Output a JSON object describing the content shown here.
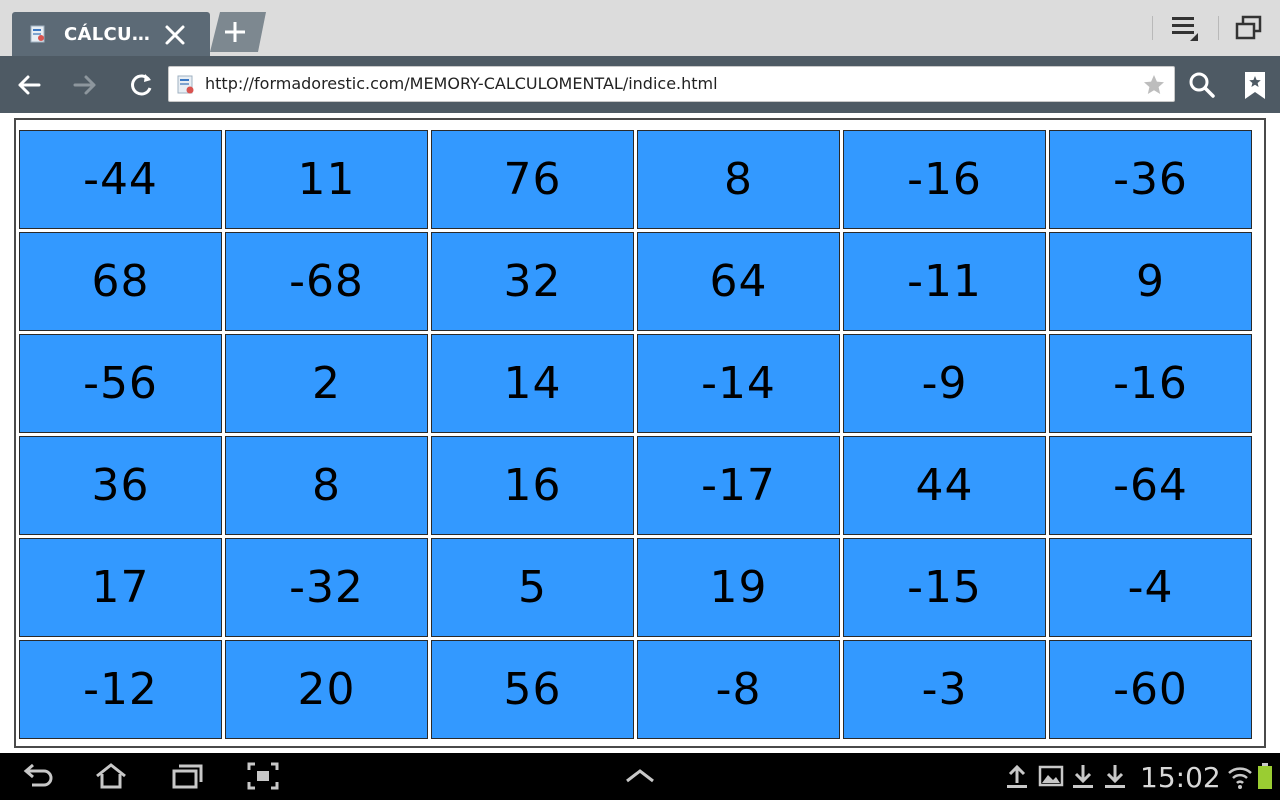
{
  "browser": {
    "tab_title": "CÁLCU…",
    "url": "http://formadorestic.com/MEMORY-CALCULOMENTAL/indice.html"
  },
  "board": {
    "rows": [
      [
        "-44",
        "11",
        "76",
        "8",
        "-16",
        "-36"
      ],
      [
        "68",
        "-68",
        "32",
        "64",
        "-11",
        "9"
      ],
      [
        "-56",
        "2",
        "14",
        "-14",
        "-9",
        "-16"
      ],
      [
        "36",
        "8",
        "16",
        "-17",
        "44",
        "-64"
      ],
      [
        "17",
        "-32",
        "5",
        "19",
        "-15",
        "-4"
      ],
      [
        "-12",
        "20",
        "56",
        "-8",
        "-3",
        "-60"
      ]
    ],
    "card_color": "#3399ff"
  },
  "system_bar": {
    "clock": "15:02"
  }
}
